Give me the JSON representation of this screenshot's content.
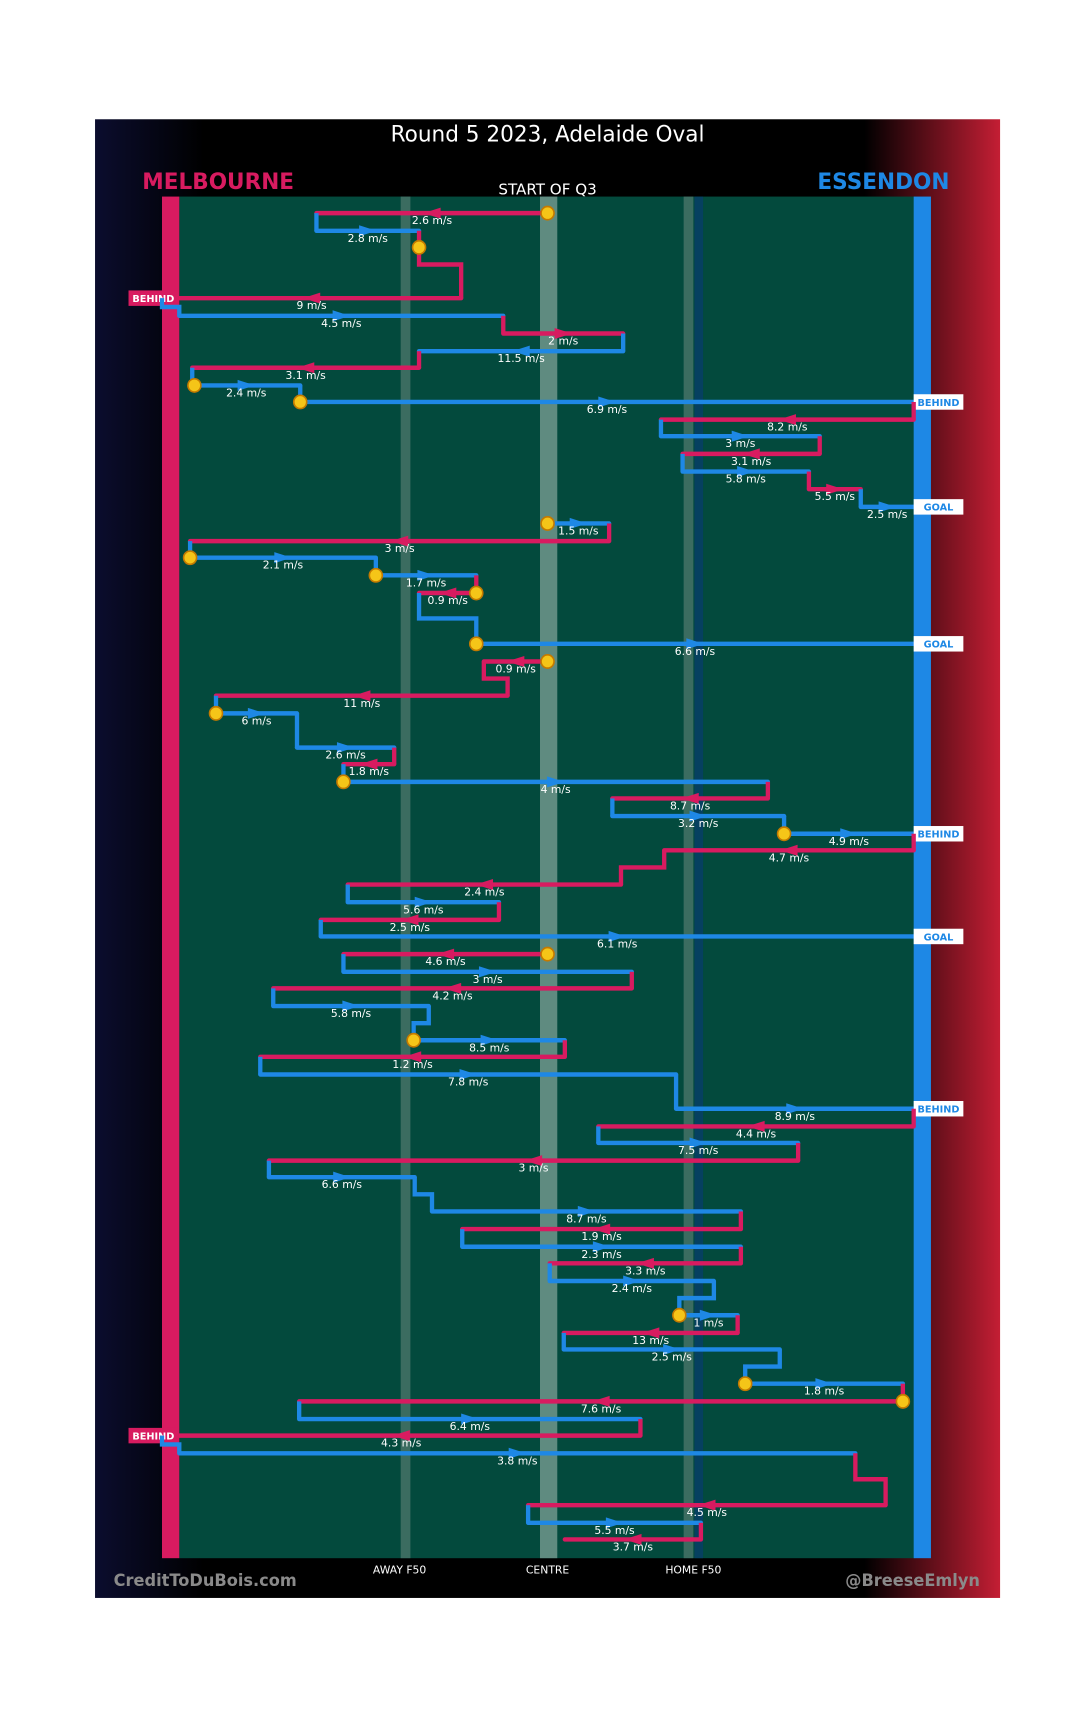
{
  "title": "Round 5 2023, Adelaide Oval",
  "teams": [
    "MELBOURNE",
    "ESSENDON"
  ],
  "start": "START OF Q3",
  "zones": [
    "AWAY F50",
    "CENTRE",
    "HOME F50"
  ],
  "credits": [
    "CreditToDuBois.com",
    "@BreeseEmlyn"
  ],
  "passes": [
    {
      "speed": "2.6 m/s"
    },
    {
      "speed": "2.8 m/s"
    },
    {
      "speed": "9 m/s",
      "outcome": "BEHIND"
    },
    {
      "speed": "4.5 m/s"
    },
    {
      "speed": "2 m/s"
    },
    {
      "speed": "11.5 m/s"
    },
    {
      "speed": "3.1 m/s"
    },
    {
      "speed": "2.4 m/s"
    },
    {
      "speed": "6.9 m/s",
      "outcome": "BEHIND"
    },
    {
      "speed": "8.2 m/s"
    },
    {
      "speed": "3 m/s"
    },
    {
      "speed": "3.1 m/s"
    },
    {
      "speed": "5.8 m/s"
    },
    {
      "speed": "5.5 m/s"
    },
    {
      "speed": "2.5 m/s",
      "outcome": "GOAL"
    },
    {
      "speed": "1.5 m/s"
    },
    {
      "speed": "3 m/s"
    },
    {
      "speed": "2.1 m/s"
    },
    {
      "speed": "1.7 m/s"
    },
    {
      "speed": "0.9 m/s"
    },
    {
      "speed": "6.6 m/s",
      "outcome": "GOAL"
    },
    {
      "speed": "0.9 m/s"
    },
    {
      "speed": "11 m/s"
    },
    {
      "speed": "6 m/s"
    },
    {
      "speed": "2.6 m/s"
    },
    {
      "speed": "1.8 m/s"
    },
    {
      "speed": "4 m/s"
    },
    {
      "speed": "8.7 m/s"
    },
    {
      "speed": "3.2 m/s"
    },
    {
      "speed": "4.9 m/s",
      "outcome": "BEHIND"
    },
    {
      "speed": "4.7 m/s"
    },
    {
      "speed": "2.4 m/s"
    },
    {
      "speed": "5.6 m/s"
    },
    {
      "speed": "2.5 m/s"
    },
    {
      "speed": "6.1 m/s",
      "outcome": "GOAL"
    },
    {
      "speed": "4.6 m/s"
    },
    {
      "speed": "3 m/s"
    },
    {
      "speed": "4.2 m/s"
    },
    {
      "speed": "5.8 m/s"
    },
    {
      "speed": "8.5 m/s"
    },
    {
      "speed": "1.2 m/s"
    },
    {
      "speed": "7.8 m/s"
    },
    {
      "speed": "8.9 m/s",
      "outcome": "BEHIND"
    },
    {
      "speed": "4.4 m/s"
    },
    {
      "speed": "7.5 m/s"
    },
    {
      "speed": "3 m/s"
    },
    {
      "speed": "6.6 m/s"
    },
    {
      "speed": "8.7 m/s"
    },
    {
      "speed": "1.9 m/s"
    },
    {
      "speed": "2.3 m/s"
    },
    {
      "speed": "3.3 m/s"
    },
    {
      "speed": "2.4 m/s"
    },
    {
      "speed": "1 m/s"
    },
    {
      "speed": "13 m/s"
    },
    {
      "speed": "2.5 m/s"
    },
    {
      "speed": "1.8 m/s"
    },
    {
      "speed": "7.6 m/s"
    },
    {
      "speed": "6.4 m/s"
    },
    {
      "speed": "4.3 m/s",
      "outcome": "BEHIND"
    },
    {
      "speed": "3.8 m/s"
    },
    {
      "speed": "4.5 m/s"
    },
    {
      "speed": "5.5 m/s"
    },
    {
      "speed": "3.7 m/s"
    }
  ]
}
